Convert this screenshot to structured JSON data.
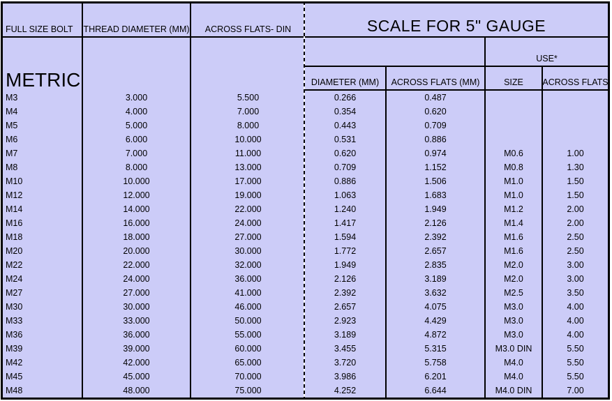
{
  "colors": {
    "cell_bg": "#ccccf8",
    "border": "#000000",
    "text": "#000000",
    "page_bg": "#ffffff"
  },
  "headers": {
    "full_size_bolt": "FULL SIZE BOLT",
    "metric_label": "METRIC",
    "thread_diameter": "THREAD DIAMETER (MM)",
    "across_flats_din": "ACROSS FLATS- DIN",
    "scale_title": "SCALE FOR 5\" GAUGE",
    "use_label": "USE*",
    "diameter_mm": "DIAMETER (MM)",
    "across_flats_mm": "ACROSS FLATS (MM)",
    "size": "SIZE",
    "use_across_flats": "ACROSS FLATS"
  },
  "table": {
    "rows": [
      {
        "bolt": "M3",
        "thread_diameter": "3.000",
        "across_flats_din": "5.500",
        "diameter_mm": "0.266",
        "across_flats_mm": "0.487",
        "use_size": "",
        "use_across_flats": ""
      },
      {
        "bolt": "M4",
        "thread_diameter": "4.000",
        "across_flats_din": "7.000",
        "diameter_mm": "0.354",
        "across_flats_mm": "0.620",
        "use_size": "",
        "use_across_flats": ""
      },
      {
        "bolt": "M5",
        "thread_diameter": "5.000",
        "across_flats_din": "8.000",
        "diameter_mm": "0.443",
        "across_flats_mm": "0.709",
        "use_size": "",
        "use_across_flats": ""
      },
      {
        "bolt": "M6",
        "thread_diameter": "6.000",
        "across_flats_din": "10.000",
        "diameter_mm": "0.531",
        "across_flats_mm": "0.886",
        "use_size": "",
        "use_across_flats": ""
      },
      {
        "bolt": "M7",
        "thread_diameter": "7.000",
        "across_flats_din": "11.000",
        "diameter_mm": "0.620",
        "across_flats_mm": "0.974",
        "use_size": "M0.6",
        "use_across_flats": "1.00"
      },
      {
        "bolt": "M8",
        "thread_diameter": "8.000",
        "across_flats_din": "13.000",
        "diameter_mm": "0.709",
        "across_flats_mm": "1.152",
        "use_size": "M0.8",
        "use_across_flats": "1.30"
      },
      {
        "bolt": "M10",
        "thread_diameter": "10.000",
        "across_flats_din": "17.000",
        "diameter_mm": "0.886",
        "across_flats_mm": "1.506",
        "use_size": "M1.0",
        "use_across_flats": "1.50"
      },
      {
        "bolt": "M12",
        "thread_diameter": "12.000",
        "across_flats_din": "19.000",
        "diameter_mm": "1.063",
        "across_flats_mm": "1.683",
        "use_size": "M1.0",
        "use_across_flats": "1.50"
      },
      {
        "bolt": "M14",
        "thread_diameter": "14.000",
        "across_flats_din": "22.000",
        "diameter_mm": "1.240",
        "across_flats_mm": "1.949",
        "use_size": "M1.2",
        "use_across_flats": "2.00"
      },
      {
        "bolt": "M16",
        "thread_diameter": "16.000",
        "across_flats_din": "24.000",
        "diameter_mm": "1.417",
        "across_flats_mm": "2.126",
        "use_size": "M1.4",
        "use_across_flats": "2.00"
      },
      {
        "bolt": "M18",
        "thread_diameter": "18.000",
        "across_flats_din": "27.000",
        "diameter_mm": "1.594",
        "across_flats_mm": "2.392",
        "use_size": "M1.6",
        "use_across_flats": "2.50"
      },
      {
        "bolt": "M20",
        "thread_diameter": "20.000",
        "across_flats_din": "30.000",
        "diameter_mm": "1.772",
        "across_flats_mm": "2.657",
        "use_size": "M1.6",
        "use_across_flats": "2.50"
      },
      {
        "bolt": "M22",
        "thread_diameter": "22.000",
        "across_flats_din": "32.000",
        "diameter_mm": "1.949",
        "across_flats_mm": "2.835",
        "use_size": "M2.0",
        "use_across_flats": "3.00"
      },
      {
        "bolt": "M24",
        "thread_diameter": "24.000",
        "across_flats_din": "36.000",
        "diameter_mm": "2.126",
        "across_flats_mm": "3.189",
        "use_size": "M2.0",
        "use_across_flats": "3.00"
      },
      {
        "bolt": "M27",
        "thread_diameter": "27.000",
        "across_flats_din": "41.000",
        "diameter_mm": "2.392",
        "across_flats_mm": "3.632",
        "use_size": "M2.5",
        "use_across_flats": "3.50"
      },
      {
        "bolt": "M30",
        "thread_diameter": "30.000",
        "across_flats_din": "46.000",
        "diameter_mm": "2.657",
        "across_flats_mm": "4.075",
        "use_size": "M3.0",
        "use_across_flats": "4.00"
      },
      {
        "bolt": "M33",
        "thread_diameter": "33.000",
        "across_flats_din": "50.000",
        "diameter_mm": "2.923",
        "across_flats_mm": "4.429",
        "use_size": "M3.0",
        "use_across_flats": "4.00"
      },
      {
        "bolt": "M36",
        "thread_diameter": "36.000",
        "across_flats_din": "55.000",
        "diameter_mm": "3.189",
        "across_flats_mm": "4.872",
        "use_size": "M3.0",
        "use_across_flats": "4.00"
      },
      {
        "bolt": "M39",
        "thread_diameter": "39.000",
        "across_flats_din": "60.000",
        "diameter_mm": "3.455",
        "across_flats_mm": "5.315",
        "use_size": "M3.0 DIN",
        "use_across_flats": "5.50"
      },
      {
        "bolt": "M42",
        "thread_diameter": "42.000",
        "across_flats_din": "65.000",
        "diameter_mm": "3.720",
        "across_flats_mm": "5.758",
        "use_size": "M4.0",
        "use_across_flats": "5.50"
      },
      {
        "bolt": "M45",
        "thread_diameter": "45.000",
        "across_flats_din": "70.000",
        "diameter_mm": "3.986",
        "across_flats_mm": "6.201",
        "use_size": "M4.0",
        "use_across_flats": "5.50"
      },
      {
        "bolt": "M48",
        "thread_diameter": "48.000",
        "across_flats_din": "75.000",
        "diameter_mm": "4.252",
        "across_flats_mm": "6.644",
        "use_size": "M4.0 DIN",
        "use_across_flats": "7.00"
      }
    ]
  }
}
